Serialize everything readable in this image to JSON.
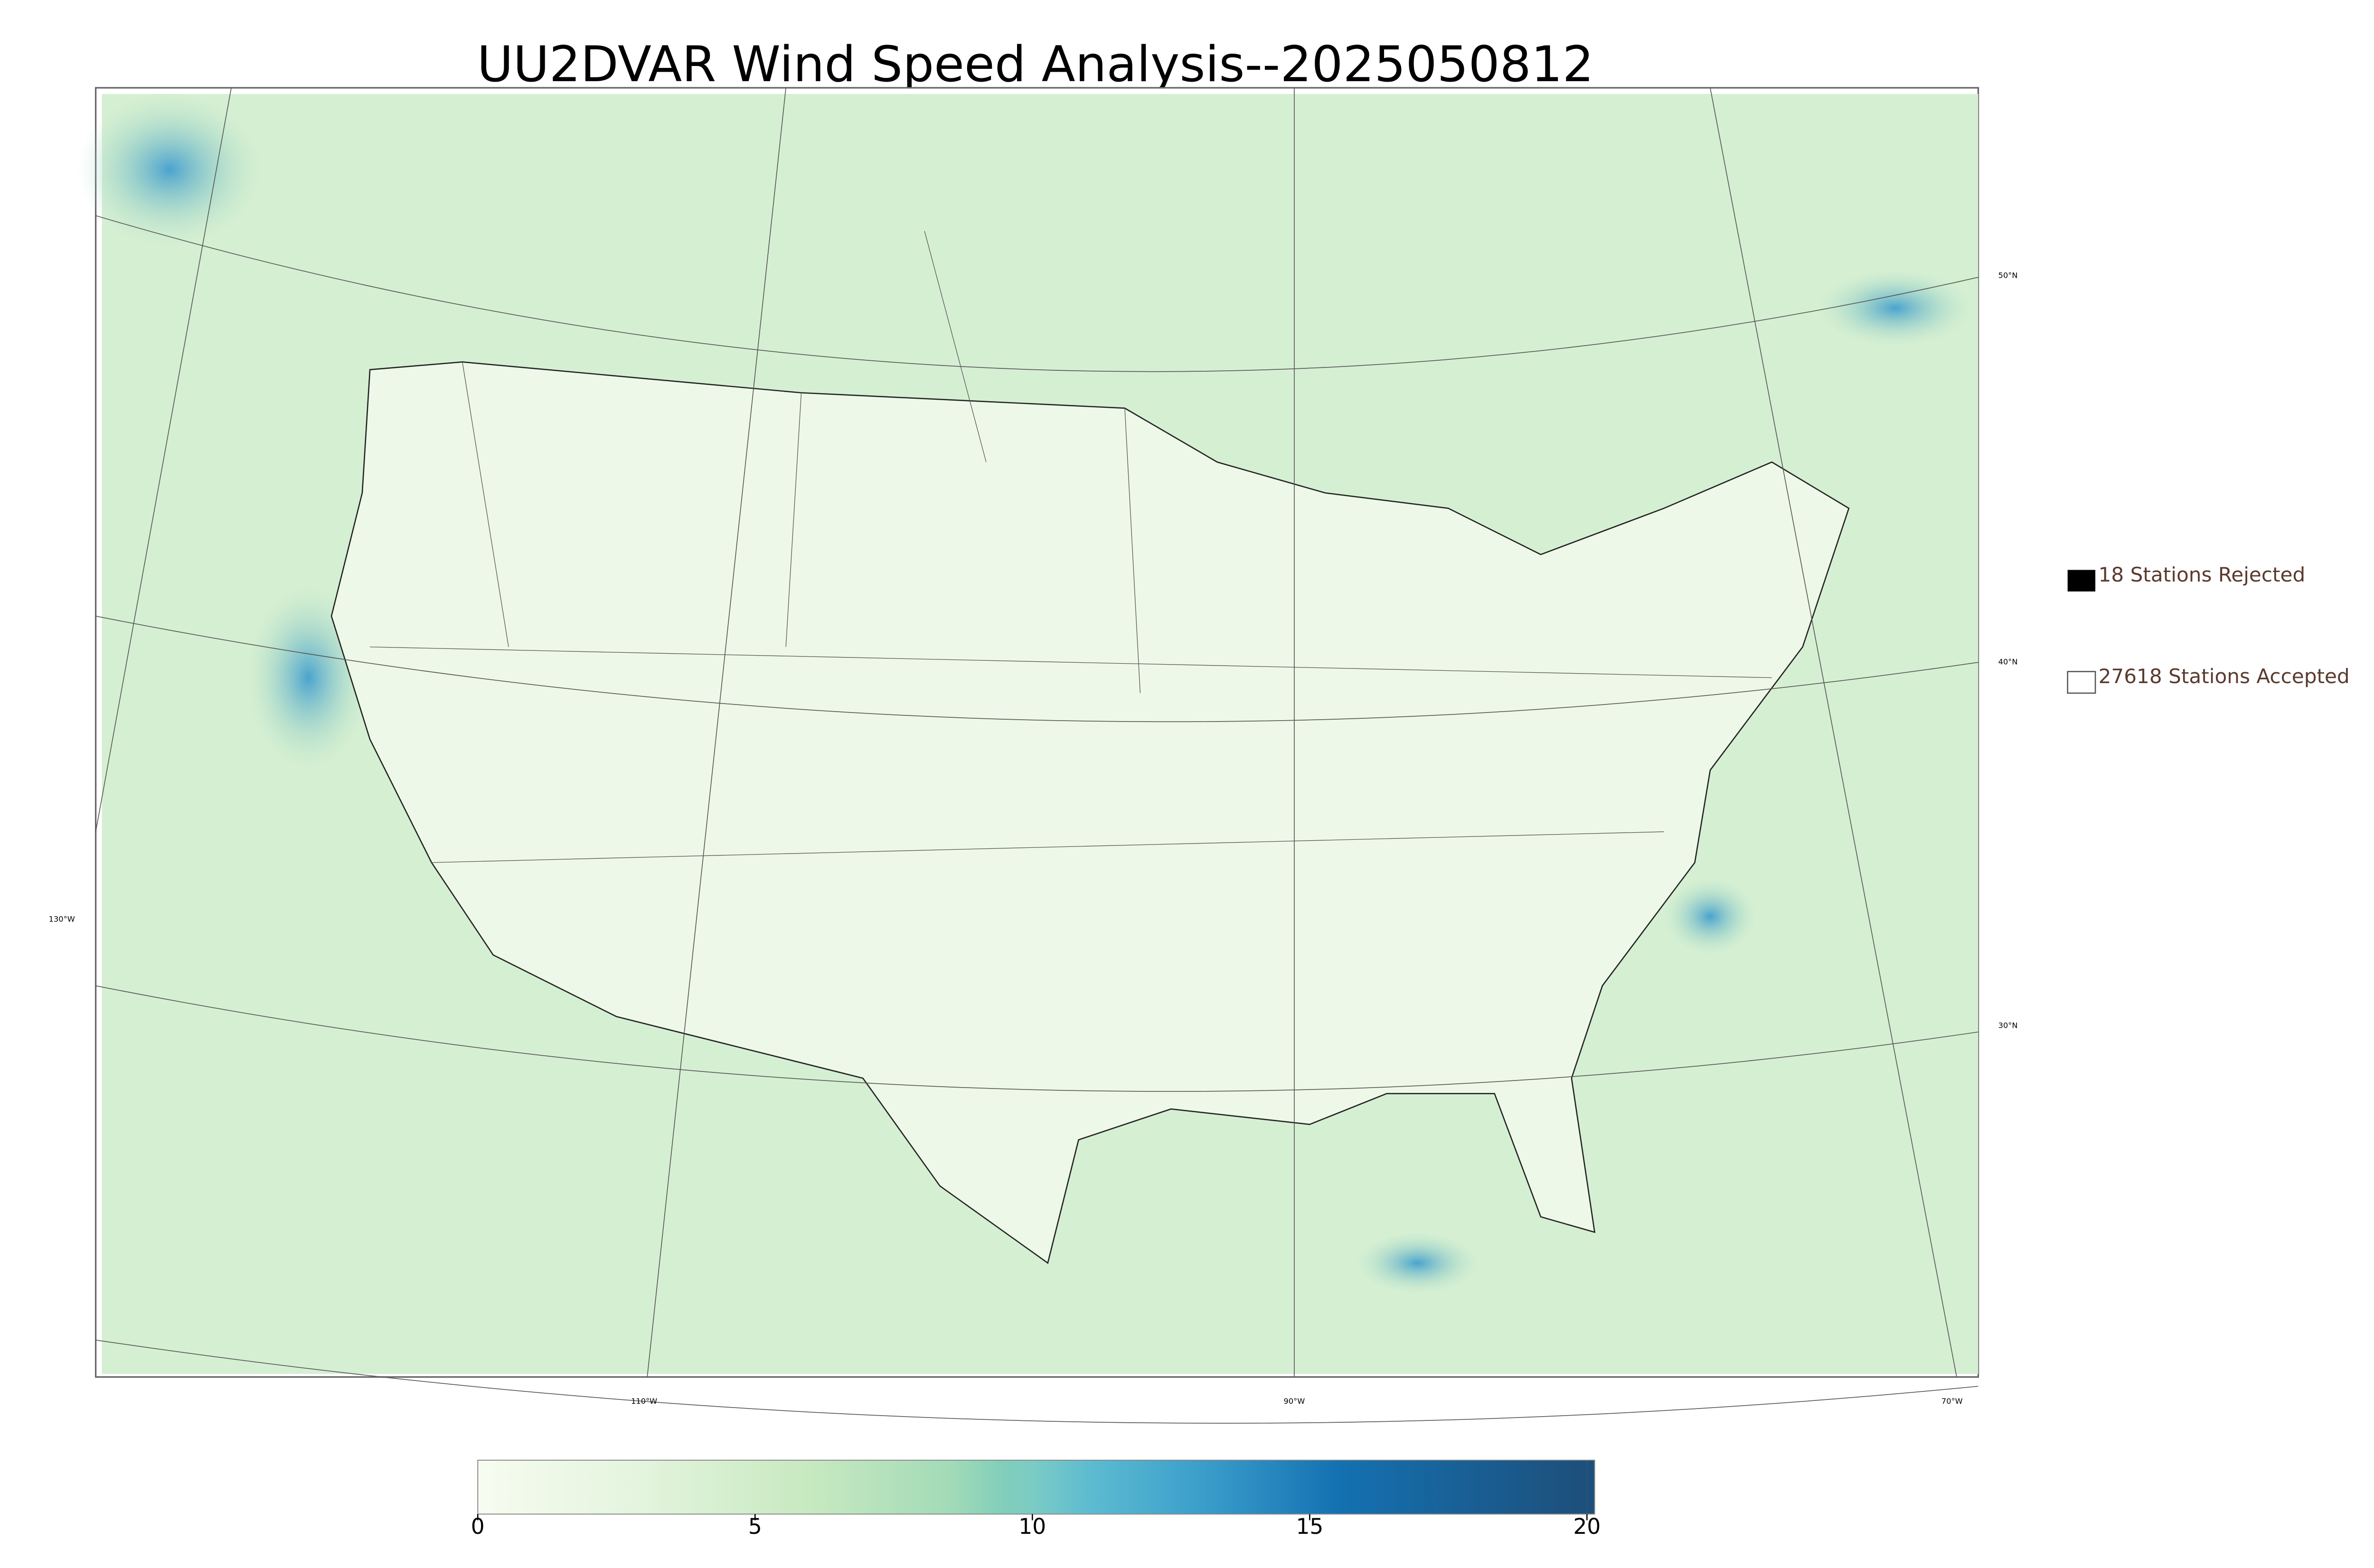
{
  "title": "UU2DVAR Wind Speed Analysis--2025050812",
  "legend": {
    "rejected": "18 Stations Rejected",
    "accepted": "27618 Stations Accepted"
  },
  "graticule": {
    "latitude_labels": [
      "50°N",
      "40°N",
      "30°N"
    ],
    "longitude_labels": [
      "130°W",
      "110°W",
      "90°W",
      "70°W"
    ]
  },
  "colorbar": {
    "lim": [
      0,
      20
    ],
    "ticks": [
      0,
      5,
      10,
      15,
      20
    ],
    "stops": [
      {
        "value": 0,
        "color": "#f7fcf0"
      },
      {
        "value": 3,
        "color": "#e3f4dd"
      },
      {
        "value": 6,
        "color": "#c7e9c0"
      },
      {
        "value": 8.5,
        "color": "#a3dbb8"
      },
      {
        "value": 9.5,
        "color": "#80ceba"
      },
      {
        "value": 10,
        "color": "#7bccc4"
      },
      {
        "value": 11,
        "color": "#5ebcd1"
      },
      {
        "value": 13,
        "color": "#3b9fcb"
      },
      {
        "value": 15.5,
        "color": "#1471b2"
      },
      {
        "value": 20,
        "color": "#1d4f7a"
      }
    ]
  }
}
